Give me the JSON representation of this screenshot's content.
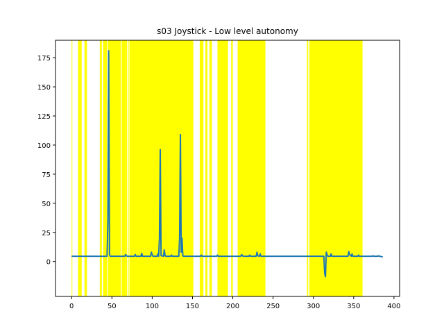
{
  "chart_data": {
    "type": "line",
    "title": "s03 Joystick - Low level autonomy",
    "xlabel": "",
    "ylabel": "",
    "xlim": [
      -20,
      407
    ],
    "ylim": [
      -30,
      190
    ],
    "xticks": [
      0,
      50,
      100,
      150,
      200,
      250,
      300,
      350,
      400
    ],
    "yticks": [
      0,
      25,
      50,
      75,
      100,
      125,
      150,
      175
    ],
    "grid": false,
    "colors": {
      "line": "#1f77b4",
      "highlight": "#ffff00",
      "frame": "#000000",
      "background": "#ffffff"
    },
    "highlight_spans": [
      [
        0.0,
        0.8
      ],
      [
        8.0,
        12.5
      ],
      [
        16.0,
        19.0
      ],
      [
        35.0,
        37.5
      ],
      [
        39.0,
        44.0
      ],
      [
        45.0,
        61.0
      ],
      [
        62.0,
        69.0
      ],
      [
        70.5,
        71.5
      ],
      [
        72.0,
        151.0
      ],
      [
        159.0,
        163.5
      ],
      [
        166.0,
        168.5
      ],
      [
        171.0,
        174.0
      ],
      [
        181.0,
        194.0
      ],
      [
        198.0,
        200.0
      ],
      [
        206.0,
        240.5
      ],
      [
        292.0,
        293.5
      ],
      [
        295.0,
        361.0
      ]
    ],
    "series": [
      {
        "x": [
          0,
          44,
          45,
          46,
          47,
          48,
          66,
          67,
          68,
          69,
          78,
          79,
          80,
          86,
          87,
          88,
          98,
          99,
          100,
          101,
          106,
          107,
          108,
          109,
          110,
          111,
          114,
          115,
          116,
          117,
          123,
          124,
          125,
          133,
          134,
          135,
          136,
          137,
          138,
          139,
          160,
          161,
          162,
          180,
          181,
          182,
          210,
          211,
          212,
          213,
          220,
          221,
          222,
          229,
          230,
          231,
          233,
          234,
          235,
          313,
          314,
          315,
          316,
          317,
          318,
          321,
          322,
          323,
          343,
          344,
          345,
          347,
          348,
          349,
          355,
          356,
          357,
          373,
          374,
          375,
          380,
          381,
          382,
          386
        ],
        "y": [
          4.5,
          4.5,
          35,
          181,
          6,
          4.5,
          4.5,
          6,
          5,
          4.5,
          4.5,
          6,
          4.5,
          4.5,
          7,
          4.5,
          4.5,
          8,
          6,
          4.5,
          4.5,
          6.5,
          4.5,
          20,
          96,
          5,
          4.5,
          10,
          5,
          4.5,
          4.5,
          5.5,
          4.5,
          4.5,
          20,
          109,
          8,
          20,
          5,
          4.5,
          4.5,
          5.5,
          4.5,
          4.5,
          5.5,
          4.5,
          4.5,
          6,
          5,
          4.5,
          4.5,
          5.5,
          4.5,
          4.5,
          8,
          5,
          4.5,
          6.5,
          4.5,
          4.5,
          -10,
          -13,
          8,
          6,
          4.5,
          4.5,
          6.5,
          4.5,
          4.5,
          8.5,
          6,
          4.5,
          6.5,
          4.5,
          4.5,
          5.5,
          4.5,
          4.5,
          5,
          4.5,
          4.5,
          5,
          4.5,
          4
        ]
      }
    ]
  }
}
